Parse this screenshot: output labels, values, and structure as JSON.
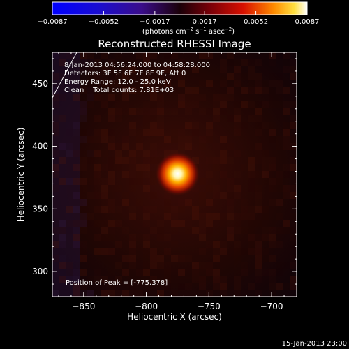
{
  "chart_data": {
    "type": "heatmap",
    "title": "Reconstructed RHESSI Image",
    "xlabel": "Heliocentric X (arcsec)",
    "ylabel": "Heliocentric Y (arcsec)",
    "xlim": [
      -875,
      -680
    ],
    "ylim": [
      280,
      475
    ],
    "xticks": [
      {
        "value": -850,
        "label": "−850"
      },
      {
        "value": -800,
        "label": "−800"
      },
      {
        "value": -750,
        "label": "−750"
      },
      {
        "value": -700,
        "label": "−700"
      }
    ],
    "yticks": [
      {
        "value": 300,
        "label": "300"
      },
      {
        "value": 350,
        "label": "350"
      },
      {
        "value": 400,
        "label": "400"
      },
      {
        "value": 450,
        "label": "450"
      }
    ],
    "colorbar": {
      "range": [
        -0.0087,
        0.0087
      ],
      "ticks": [
        {
          "value": -0.0087,
          "label": "−0.0087"
        },
        {
          "value": -0.0052,
          "label": "−0.0052"
        },
        {
          "value": -0.0017,
          "label": "−0.0017"
        },
        {
          "value": 0.0017,
          "label": "0.0017"
        },
        {
          "value": 0.0052,
          "label": "0.0052"
        },
        {
          "value": 0.0087,
          "label": "0.0087"
        }
      ],
      "unit_prefix": "(photons cm",
      "unit_exp1": "−2",
      "unit_mid1": " s",
      "unit_exp2": "−1",
      "unit_mid2": " asec",
      "unit_exp3": "−2",
      "unit_suffix": ")"
    },
    "peak": {
      "x": -775,
      "y": 378,
      "value": 0.0087
    },
    "annotations": {
      "time": "8-Jan-2013 04:56:24.000 to 04:58:28.000",
      "detectors": "Detectors: 3F 5F 6F 7F 8F 9F, Att 0",
      "energy": "Energy Range: 12.0 - 25.0 keV",
      "clean": "Clean    Total counts: 7.81E+03",
      "peak_text": "Position of Peak = [-775,378]"
    },
    "footer_date": "15-Jan-2013 23:00"
  }
}
